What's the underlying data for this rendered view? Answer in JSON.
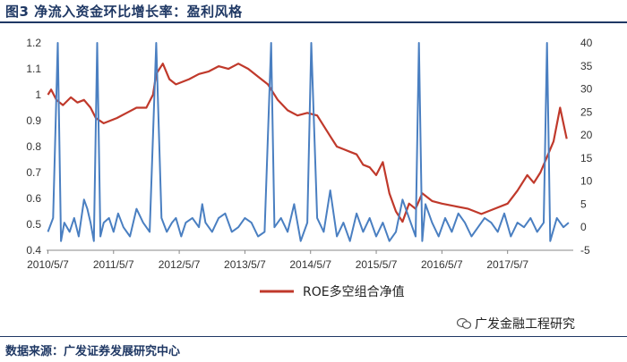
{
  "title": "图3  净流入资金环比增长率：盈利风格",
  "source": "数据来源：广发证券发展研究中心",
  "watermark": "广发金融工程研究",
  "colors": {
    "red_series": "#c0392b",
    "blue_series": "#4a7fc1",
    "heading": "#1f3864"
  },
  "chart_data": {
    "type": "line",
    "x_tick_labels": [
      "2010/5/7",
      "2011/5/7",
      "2012/5/7",
      "2013/5/7",
      "2014/5/7",
      "2015/5/7",
      "2016/5/7",
      "2017/5/7"
    ],
    "x_range": [
      2010.33,
      2018.35
    ],
    "left_axis": {
      "min": 0.4,
      "max": 1.2,
      "ticks": [
        0.4,
        0.5,
        0.6,
        0.7,
        0.8,
        0.9,
        1,
        1.1,
        1.2
      ]
    },
    "right_axis": {
      "min": -5,
      "max": 40,
      "ticks": [
        -5,
        0,
        5,
        10,
        15,
        20,
        25,
        30,
        35,
        40
      ]
    },
    "legend": {
      "position": "bottom-center"
    },
    "series": [
      {
        "name": "ROE多空组合净值",
        "axis": "left",
        "x": [
          2010.35,
          2010.4,
          2010.48,
          2010.58,
          2010.7,
          2010.8,
          2010.9,
          2011.0,
          2011.08,
          2011.2,
          2011.3,
          2011.4,
          2011.55,
          2011.7,
          2011.85,
          2011.95,
          2012.0,
          2012.1,
          2012.2,
          2012.3,
          2012.4,
          2012.5,
          2012.65,
          2012.8,
          2012.95,
          2013.1,
          2013.25,
          2013.4,
          2013.55,
          2013.7,
          2013.85,
          2014.0,
          2014.15,
          2014.3,
          2014.45,
          2014.55,
          2014.65,
          2014.75,
          2014.85,
          2014.95,
          2015.05,
          2015.15,
          2015.25,
          2015.35,
          2015.45,
          2015.55,
          2015.65,
          2015.75,
          2015.85,
          2015.95,
          2016.05,
          2016.2,
          2016.35,
          2016.55,
          2016.75,
          2016.95,
          2017.15,
          2017.35,
          2017.5,
          2017.65,
          2017.75,
          2017.85,
          2017.95,
          2018.05,
          2018.15,
          2018.25
        ],
        "y": [
          1.0,
          1.02,
          0.98,
          0.96,
          0.99,
          0.97,
          0.98,
          0.95,
          0.91,
          0.89,
          0.9,
          0.91,
          0.93,
          0.95,
          0.95,
          1.0,
          1.08,
          1.12,
          1.06,
          1.04,
          1.05,
          1.06,
          1.08,
          1.09,
          1.11,
          1.1,
          1.12,
          1.1,
          1.07,
          1.04,
          0.98,
          0.94,
          0.92,
          0.93,
          0.92,
          0.88,
          0.84,
          0.8,
          0.79,
          0.78,
          0.77,
          0.73,
          0.72,
          0.69,
          0.74,
          0.62,
          0.55,
          0.51,
          0.58,
          0.56,
          0.62,
          0.59,
          0.58,
          0.57,
          0.56,
          0.54,
          0.56,
          0.58,
          0.63,
          0.69,
          0.66,
          0.7,
          0.76,
          0.82,
          0.95,
          0.83
        ]
      },
      {
        "name": "",
        "axis": "right",
        "x": [
          2010.35,
          2010.43,
          2010.5,
          2010.55,
          2010.6,
          2010.68,
          2010.75,
          2010.82,
          2010.9,
          2010.95,
          2011.0,
          2011.05,
          2011.1,
          2011.15,
          2011.2,
          2011.28,
          2011.35,
          2011.42,
          2011.5,
          2011.6,
          2011.7,
          2011.8,
          2011.9,
          2012.0,
          2012.08,
          2012.16,
          2012.24,
          2012.3,
          2012.38,
          2012.45,
          2012.55,
          2012.65,
          2012.7,
          2012.75,
          2012.85,
          2012.95,
          2013.05,
          2013.15,
          2013.25,
          2013.35,
          2013.45,
          2013.55,
          2013.65,
          2013.75,
          2013.8,
          2013.9,
          2014.0,
          2014.1,
          2014.2,
          2014.3,
          2014.36,
          2014.45,
          2014.55,
          2014.65,
          2014.75,
          2014.85,
          2014.95,
          2015.05,
          2015.15,
          2015.25,
          2015.35,
          2015.45,
          2015.55,
          2015.65,
          2015.75,
          2015.85,
          2015.95,
          2016.0,
          2016.05,
          2016.1,
          2016.2,
          2016.3,
          2016.4,
          2016.5,
          2016.6,
          2016.7,
          2016.8,
          2016.9,
          2017.0,
          2017.1,
          2017.2,
          2017.3,
          2017.4,
          2017.5,
          2017.6,
          2017.7,
          2017.8,
          2017.9,
          2017.95,
          2018.0,
          2018.1,
          2018.2,
          2018.28
        ],
        "y": [
          -1,
          2,
          40,
          -3,
          1,
          -1,
          2,
          -2,
          6,
          4,
          1,
          -3,
          40,
          -2,
          1,
          2,
          -1,
          3,
          0,
          -2,
          4,
          1,
          -1,
          40,
          2,
          -1,
          1,
          2,
          -2,
          1,
          2,
          0,
          5,
          1,
          -1,
          2,
          3,
          -1,
          0,
          2,
          1,
          -2,
          -1,
          40,
          0,
          2,
          -1,
          5,
          -3,
          1,
          40,
          2,
          -1,
          8,
          -2,
          1,
          -3,
          3,
          -1,
          2,
          -2,
          1,
          -3,
          -1,
          6,
          2,
          -2,
          40,
          -3,
          5,
          1,
          -2,
          2,
          -1,
          3,
          1,
          -2,
          0,
          2,
          1,
          -1,
          3,
          -2,
          1,
          0,
          2,
          -1,
          1,
          40,
          -3,
          2,
          0,
          1
        ]
      }
    ]
  }
}
